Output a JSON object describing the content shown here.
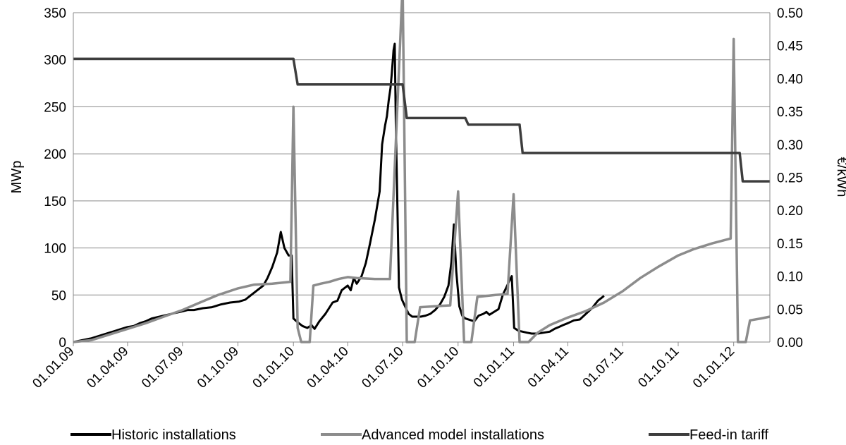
{
  "chart_data": {
    "type": "line",
    "ylabel": "MWp",
    "y2label": "€/kWh",
    "ylim": [
      0,
      350
    ],
    "y2lim": [
      0,
      0.5
    ],
    "x_range_days": [
      0,
      1155
    ],
    "gridlines": "horizontal",
    "legend_position": "bottom",
    "y_ticks": [
      "0",
      "50",
      "100",
      "150",
      "200",
      "250",
      "300",
      "350"
    ],
    "y2_ticks": [
      "0.00",
      "0.05",
      "0.10",
      "0.15",
      "0.20",
      "0.25",
      "0.30",
      "0.35",
      "0.40",
      "0.45",
      "0.50"
    ],
    "x_ticks": [
      {
        "label": "01.01.09",
        "day": 0
      },
      {
        "label": "01.04.09",
        "day": 90
      },
      {
        "label": "01.07.09",
        "day": 181
      },
      {
        "label": "01.10.09",
        "day": 273
      },
      {
        "label": "01.01.10",
        "day": 365
      },
      {
        "label": "01.04.10",
        "day": 455
      },
      {
        "label": "01.07.10",
        "day": 546
      },
      {
        "label": "01.10.10",
        "day": 638
      },
      {
        "label": "01.01.11",
        "day": 730
      },
      {
        "label": "01.04.11",
        "day": 820
      },
      {
        "label": "01.07.11",
        "day": 911
      },
      {
        "label": "01.10.11",
        "day": 1003
      },
      {
        "label": "01.01.12",
        "day": 1095
      }
    ],
    "series": [
      {
        "name": "Historic installations",
        "axis": "left",
        "color": "#000000",
        "points": [
          [
            0,
            0
          ],
          [
            15,
            2
          ],
          [
            30,
            4
          ],
          [
            45,
            7
          ],
          [
            60,
            10
          ],
          [
            70,
            12
          ],
          [
            80,
            14
          ],
          [
            90,
            16
          ],
          [
            100,
            17
          ],
          [
            110,
            20
          ],
          [
            120,
            22
          ],
          [
            130,
            25
          ],
          [
            150,
            28
          ],
          [
            170,
            31
          ],
          [
            190,
            34
          ],
          [
            200,
            34
          ],
          [
            215,
            36
          ],
          [
            230,
            37
          ],
          [
            245,
            40
          ],
          [
            260,
            42
          ],
          [
            275,
            43
          ],
          [
            285,
            45
          ],
          [
            295,
            50
          ],
          [
            305,
            55
          ],
          [
            315,
            60
          ],
          [
            322,
            68
          ],
          [
            330,
            80
          ],
          [
            338,
            95
          ],
          [
            344,
            117
          ],
          [
            350,
            100
          ],
          [
            357,
            92
          ],
          [
            362,
            92
          ],
          [
            365,
            25
          ],
          [
            372,
            21
          ],
          [
            380,
            17
          ],
          [
            388,
            15
          ],
          [
            395,
            18
          ],
          [
            400,
            14
          ],
          [
            408,
            22
          ],
          [
            418,
            30
          ],
          [
            430,
            42
          ],
          [
            438,
            44
          ],
          [
            445,
            55
          ],
          [
            455,
            60
          ],
          [
            460,
            55
          ],
          [
            465,
            68
          ],
          [
            470,
            62
          ],
          [
            478,
            70
          ],
          [
            485,
            84
          ],
          [
            492,
            105
          ],
          [
            500,
            130
          ],
          [
            508,
            160
          ],
          [
            512,
            210
          ],
          [
            517,
            230
          ],
          [
            520,
            240
          ],
          [
            523,
            257
          ],
          [
            526,
            270
          ],
          [
            528,
            285
          ],
          [
            531,
            310
          ],
          [
            533,
            317
          ],
          [
            535,
            225
          ],
          [
            538,
            125
          ],
          [
            540,
            58
          ],
          [
            545,
            45
          ],
          [
            550,
            38
          ],
          [
            556,
            30
          ],
          [
            562,
            27
          ],
          [
            568,
            27
          ],
          [
            576,
            27
          ],
          [
            584,
            28
          ],
          [
            592,
            30
          ],
          [
            600,
            34
          ],
          [
            608,
            40
          ],
          [
            615,
            48
          ],
          [
            622,
            60
          ],
          [
            627,
            85
          ],
          [
            631,
            125
          ],
          [
            635,
            75
          ],
          [
            640,
            38
          ],
          [
            645,
            28
          ],
          [
            650,
            25
          ],
          [
            660,
            23
          ],
          [
            665,
            22
          ],
          [
            672,
            28
          ],
          [
            680,
            30
          ],
          [
            685,
            32
          ],
          [
            690,
            29
          ],
          [
            700,
            33
          ],
          [
            705,
            35
          ],
          [
            712,
            50
          ],
          [
            718,
            58
          ],
          [
            723,
            65
          ],
          [
            727,
            70
          ],
          [
            731,
            15
          ],
          [
            738,
            12
          ],
          [
            745,
            11
          ],
          [
            752,
            10
          ],
          [
            760,
            9
          ],
          [
            770,
            9
          ],
          [
            780,
            10
          ],
          [
            790,
            11
          ],
          [
            798,
            14
          ],
          [
            805,
            16
          ],
          [
            812,
            18
          ],
          [
            820,
            20
          ],
          [
            830,
            23
          ],
          [
            840,
            24
          ],
          [
            845,
            27
          ],
          [
            850,
            30
          ],
          [
            860,
            36
          ],
          [
            870,
            44
          ],
          [
            880,
            49
          ]
        ]
      },
      {
        "name": "Advanced model installations",
        "axis": "left",
        "color": "#8c8c8c",
        "points": [
          [
            0,
            0
          ],
          [
            30,
            2
          ],
          [
            60,
            8
          ],
          [
            90,
            14
          ],
          [
            120,
            20
          ],
          [
            150,
            27
          ],
          [
            181,
            34
          ],
          [
            210,
            42
          ],
          [
            240,
            50
          ],
          [
            273,
            57
          ],
          [
            300,
            61
          ],
          [
            330,
            62
          ],
          [
            360,
            64
          ],
          [
            365,
            250
          ],
          [
            372,
            15
          ],
          [
            378,
            0
          ],
          [
            392,
            0
          ],
          [
            398,
            60
          ],
          [
            410,
            62
          ],
          [
            425,
            64
          ],
          [
            440,
            67
          ],
          [
            455,
            69
          ],
          [
            470,
            68
          ],
          [
            500,
            67
          ],
          [
            525,
            67
          ],
          [
            546,
            380
          ],
          [
            553,
            0
          ],
          [
            566,
            0
          ],
          [
            575,
            37
          ],
          [
            600,
            38
          ],
          [
            625,
            39
          ],
          [
            638,
            160
          ],
          [
            648,
            0
          ],
          [
            660,
            0
          ],
          [
            670,
            48
          ],
          [
            700,
            50
          ],
          [
            720,
            51
          ],
          [
            730,
            157
          ],
          [
            740,
            0
          ],
          [
            755,
            0
          ],
          [
            770,
            10
          ],
          [
            790,
            18
          ],
          [
            820,
            26
          ],
          [
            850,
            33
          ],
          [
            880,
            42
          ],
          [
            911,
            54
          ],
          [
            940,
            68
          ],
          [
            970,
            80
          ],
          [
            1003,
            92
          ],
          [
            1030,
            99
          ],
          [
            1060,
            105
          ],
          [
            1090,
            110
          ],
          [
            1095,
            322
          ],
          [
            1102,
            0
          ],
          [
            1115,
            0
          ],
          [
            1122,
            23
          ],
          [
            1140,
            25
          ],
          [
            1155,
            27
          ]
        ]
      },
      {
        "name": "Feed-in tariff",
        "axis": "right",
        "color": "#3d3d3d",
        "points": [
          [
            0,
            0.43
          ],
          [
            365,
            0.43
          ],
          [
            372,
            0.391
          ],
          [
            546,
            0.391
          ],
          [
            553,
            0.34
          ],
          [
            650,
            0.34
          ],
          [
            655,
            0.33
          ],
          [
            740,
            0.33
          ],
          [
            745,
            0.287
          ],
          [
            1105,
            0.287
          ],
          [
            1110,
            0.244
          ],
          [
            1155,
            0.244
          ]
        ]
      }
    ]
  }
}
